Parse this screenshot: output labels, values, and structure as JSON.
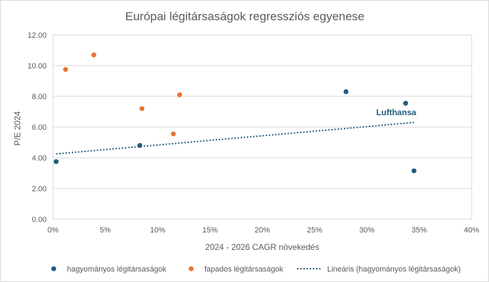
{
  "chart_data": {
    "type": "scatter",
    "title": "Európai légitársaságok regressziós egyenese",
    "xlabel": "2024 - 2026 CAGR növekedés",
    "ylabel": "P/E 2024",
    "xlim": [
      0,
      0.4
    ],
    "ylim": [
      0,
      12
    ],
    "x_ticks": [
      "0%",
      "5%",
      "10%",
      "15%",
      "20%",
      "25%",
      "30%",
      "35%",
      "40%"
    ],
    "y_ticks": [
      "0.00",
      "2.00",
      "4.00",
      "6.00",
      "8.00",
      "10.00",
      "12.00"
    ],
    "grid": "horizontal",
    "legend_position": "bottom",
    "series": [
      {
        "name": "hagyományos légitársaságok",
        "color": "#1f5e7e",
        "points": [
          {
            "x": 0.003,
            "y": 3.75
          },
          {
            "x": 0.083,
            "y": 4.8
          },
          {
            "x": 0.28,
            "y": 8.3
          },
          {
            "x": 0.337,
            "y": 7.55
          },
          {
            "x": 0.345,
            "y": 3.15
          }
        ]
      },
      {
        "name": "fapados légitársaságok",
        "color": "#e87433",
        "points": [
          {
            "x": 0.012,
            "y": 9.75
          },
          {
            "x": 0.039,
            "y": 10.7
          },
          {
            "x": 0.085,
            "y": 7.2
          },
          {
            "x": 0.115,
            "y": 5.55
          },
          {
            "x": 0.121,
            "y": 8.1
          }
        ]
      }
    ],
    "trendline": {
      "name": "Lineáris (hagyományos légitársaságok)",
      "color": "#1f5e7e",
      "style": "dotted",
      "x": [
        0.003,
        0.345
      ],
      "y": [
        4.25,
        6.3
      ]
    },
    "annotations": [
      {
        "text": "Lufthansa",
        "x": 0.328,
        "y": 6.95,
        "color": "#1f5e7e"
      }
    ]
  }
}
